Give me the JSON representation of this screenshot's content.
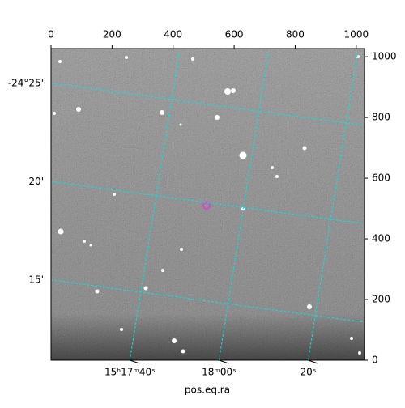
{
  "chart_data": {
    "type": "image",
    "xlabel": "pos.eq.ra",
    "xlim": [
      0,
      1027
    ],
    "xticks": [
      0,
      200,
      400,
      600,
      800,
      1000
    ],
    "ylim": [
      0,
      1027
    ],
    "yticks": [
      0,
      200,
      400,
      600,
      800,
      1000
    ],
    "ralim": [
      229.343,
      229.636
    ],
    "raticks": [
      {
        "value": 229.41667,
        "label": "15ʰ17ᵐ40ˢ"
      },
      {
        "value": 229.5,
        "label": "18ᵐ00ˢ"
      },
      {
        "value": 229.58333,
        "label": "20ˢ"
      }
    ],
    "declim": [
      -24.182,
      -24.446
    ],
    "decticks": [
      {
        "value": -24.41667,
        "label": "-24°25'"
      },
      {
        "value": -24.33333,
        "label": "20'"
      },
      {
        "value": -24.25,
        "label": "15'"
      }
    ],
    "grid": true,
    "grid_color": "#00e5e5"
  }
}
